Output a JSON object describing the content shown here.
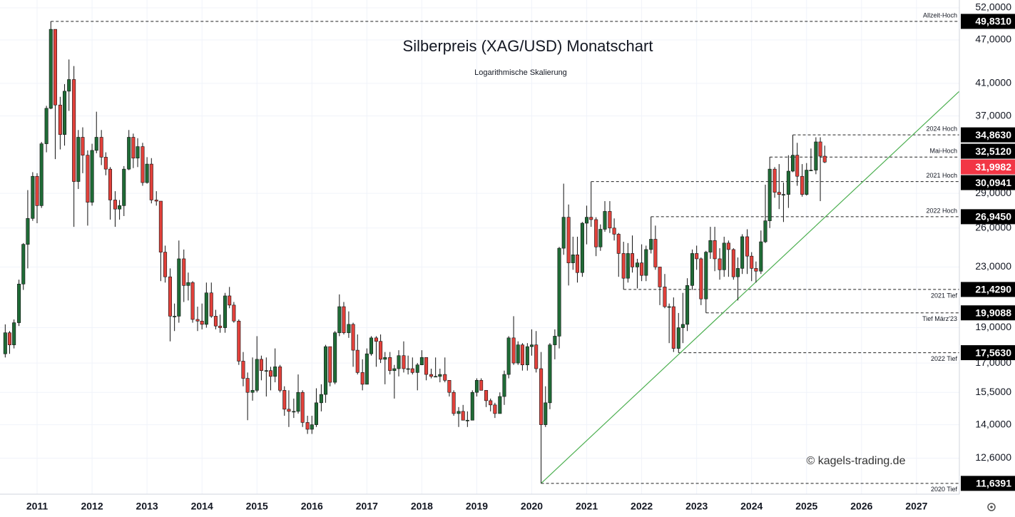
{
  "chart_data": {
    "type": "candlestick",
    "title": "Silberpreis (XAG/USD) Monatschart",
    "subtitle": "Logarithmische Skalierung",
    "watermark": "© kagels-trading.de",
    "log_scale": true,
    "grid": true,
    "up_color": "#1f6b36",
    "down_color": "#e2413b",
    "xlim": [
      2010.325,
      2027.78
    ],
    "ylim": [
      11.25,
      53.3
    ],
    "xticks": [
      2011,
      2012,
      2013,
      2014,
      2015,
      2016,
      2017,
      2018,
      2019,
      2020,
      2021,
      2022,
      2023,
      2024,
      2025,
      2026,
      2027
    ],
    "yticks": [
      {
        "value": 52,
        "label": "52,0000"
      },
      {
        "value": 47,
        "label": "47,0000"
      },
      {
        "value": 41,
        "label": "41,0000"
      },
      {
        "value": 37,
        "label": "37,0000"
      },
      {
        "value": 29,
        "label": "29,0000"
      },
      {
        "value": 26,
        "label": "26,0000"
      },
      {
        "value": 23,
        "label": "23,0000"
      },
      {
        "value": 19,
        "label": "19,0000"
      },
      {
        "value": 17,
        "label": "17,0000"
      },
      {
        "value": 15.5,
        "label": "15,5000"
      },
      {
        "value": 14,
        "label": "14,0000"
      },
      {
        "value": 12.6,
        "label": "12,6000"
      }
    ],
    "x": [
      2010.42,
      2010.5,
      2010.58,
      2010.67,
      2010.75,
      2010.83,
      2010.92,
      2011,
      2011.08,
      2011.17,
      2011.25,
      2011.33,
      2011.42,
      2011.5,
      2011.58,
      2011.67,
      2011.75,
      2011.83,
      2011.92,
      2012,
      2012.08,
      2012.17,
      2012.25,
      2012.33,
      2012.42,
      2012.5,
      2012.58,
      2012.67,
      2012.75,
      2012.83,
      2012.92,
      2013,
      2013.08,
      2013.17,
      2013.25,
      2013.33,
      2013.42,
      2013.5,
      2013.58,
      2013.67,
      2013.75,
      2013.83,
      2013.92,
      2014,
      2014.08,
      2014.17,
      2014.25,
      2014.33,
      2014.42,
      2014.5,
      2014.58,
      2014.67,
      2014.75,
      2014.83,
      2014.92,
      2015,
      2015.08,
      2015.17,
      2015.25,
      2015.33,
      2015.42,
      2015.5,
      2015.58,
      2015.67,
      2015.75,
      2015.83,
      2015.92,
      2016,
      2016.08,
      2016.17,
      2016.25,
      2016.33,
      2016.42,
      2016.5,
      2016.58,
      2016.67,
      2016.75,
      2016.83,
      2016.92,
      2017,
      2017.08,
      2017.17,
      2017.25,
      2017.33,
      2017.42,
      2017.5,
      2017.58,
      2017.67,
      2017.75,
      2017.83,
      2017.92,
      2018,
      2018.08,
      2018.17,
      2018.25,
      2018.33,
      2018.42,
      2018.5,
      2018.58,
      2018.67,
      2018.75,
      2018.83,
      2018.92,
      2019,
      2019.08,
      2019.17,
      2019.25,
      2019.33,
      2019.42,
      2019.5,
      2019.58,
      2019.67,
      2019.75,
      2019.83,
      2019.92,
      2020,
      2020.08,
      2020.17,
      2020.25,
      2020.33,
      2020.42,
      2020.5,
      2020.58,
      2020.67,
      2020.75,
      2020.83,
      2020.92,
      2021,
      2021.08,
      2021.17,
      2021.25,
      2021.33,
      2021.42,
      2021.5,
      2021.58,
      2021.67,
      2021.75,
      2021.83,
      2021.92,
      2022,
      2022.08,
      2022.17,
      2022.25,
      2022.33,
      2022.42,
      2022.5,
      2022.58,
      2022.67,
      2022.75,
      2022.83,
      2022.92,
      2023,
      2023.08,
      2023.17,
      2023.25,
      2023.33,
      2023.42,
      2023.5,
      2023.58,
      2023.67,
      2023.75,
      2023.83,
      2023.92,
      2024,
      2024.08,
      2024.17,
      2024.25,
      2024.33,
      2024.42,
      2024.5,
      2024.58,
      2024.67,
      2024.75,
      2024.83,
      2024.92,
      2025,
      2025.08,
      2025.17,
      2025.25,
      2025.33
    ],
    "open": [
      17.5,
      18.7,
      18.0,
      19.3,
      21.8,
      24.7,
      26.8,
      30.6,
      27.9,
      33.9,
      37.9,
      48.6,
      38.3,
      34.9,
      40.0,
      41.5,
      30.1,
      34.6,
      32.7,
      28.2,
      33.2,
      34.6,
      32.5,
      31.3,
      28.4,
      27.6,
      27.9,
      31.3,
      34.6,
      32.4,
      33.6,
      30.0,
      31.8,
      28.4,
      28.3,
      24.1,
      22.3,
      19.7,
      19.7,
      23.6,
      21.7,
      21.9,
      19.5,
      19.4,
      19.2,
      21.2,
      19.7,
      19.1,
      19.0,
      21.0,
      20.4,
      19.4,
      17.1,
      16.2,
      15.5,
      15.6,
      17.2,
      16.6,
      16.6,
      16.3,
      16.8,
      15.6,
      14.7,
      14.6,
      14.6,
      15.5,
      14.1,
      13.8,
      14.0,
      15.0,
      15.4,
      17.9,
      16.0,
      18.7,
      20.3,
      18.7,
      19.2,
      17.7,
      16.5,
      15.9,
      17.5,
      18.4,
      18.2,
      17.2,
      17.3,
      16.6,
      16.7,
      17.4,
      16.7,
      16.7,
      16.5,
      16.9,
      17.3,
      16.4,
      16.3,
      16.3,
      16.4,
      16.1,
      15.5,
      14.5,
      14.6,
      14.2,
      14.2,
      15.5,
      16.1,
      15.6,
      15.1,
      14.9,
      14.5,
      15.3,
      16.4,
      18.4,
      17.0,
      18.0,
      16.9,
      17.9,
      18.0,
      16.7,
      14.0,
      15.0,
      18.0,
      18.5,
      24.4,
      26.9,
      23.3,
      23.9,
      22.6,
      26.4,
      26.9,
      26.7,
      24.5,
      25.9,
      27.4,
      26.0,
      25.5,
      24.0,
      22.2,
      24.0,
      23.0,
      23.3,
      22.4,
      24.3,
      25.1,
      23.0,
      21.6,
      20.3,
      20.3,
      17.8,
      19.0,
      19.2,
      21.7,
      24.0,
      23.6,
      20.8,
      24.1,
      25.0,
      23.6,
      22.8,
      24.8,
      24.3,
      22.3,
      22.9,
      25.3,
      23.8,
      22.9,
      22.7,
      24.9,
      26.6,
      31.3,
      29.1,
      28.9,
      28.9,
      31.1,
      32.7,
      30.6,
      28.9,
      31.2,
      31.2,
      34.1,
      32.6
    ],
    "high": [
      19.2,
      18.8,
      19.5,
      22.1,
      24.8,
      29.3,
      31.0,
      30.9,
      34.1,
      38.2,
      49.83,
      48.6,
      39.3,
      40.9,
      44.2,
      43.3,
      35.4,
      35.7,
      33.2,
      33.9,
      37.5,
      35.4,
      33.0,
      31.5,
      29.2,
      28.4,
      31.6,
      35.4,
      35.0,
      34.5,
      34.0,
      32.5,
      32.4,
      29.2,
      28.3,
      24.6,
      22.9,
      20.5,
      25.0,
      24.3,
      22.6,
      22.0,
      20.3,
      20.5,
      21.9,
      21.9,
      20.1,
      19.8,
      21.2,
      21.6,
      20.6,
      19.5,
      17.6,
      16.5,
      17.3,
      18.5,
      17.4,
      17.3,
      16.8,
      17.8,
      16.9,
      15.8,
      15.6,
      15.2,
      16.4,
      15.6,
      14.4,
      14.4,
      15.7,
      15.9,
      18.0,
      17.9,
      18.8,
      21.1,
      20.6,
      20.0,
      19.3,
      18.6,
      17.2,
      17.8,
      18.5,
      18.5,
      18.6,
      17.6,
      17.6,
      16.9,
      17.7,
      18.2,
      17.4,
      17.3,
      17.0,
      17.7,
      17.3,
      16.7,
      17.3,
      16.7,
      17.3,
      16.1,
      15.6,
      14.8,
      14.9,
      14.6,
      15.6,
      16.2,
      16.2,
      15.6,
      15.2,
      15.0,
      15.5,
      16.6,
      18.5,
      19.7,
      18.2,
      18.1,
      18.1,
      18.9,
      18.8,
      17.6,
      15.8,
      18.1,
      18.9,
      24.5,
      29.9,
      28.0,
      25.3,
      25.3,
      26.5,
      27.9,
      30.09,
      26.9,
      26.3,
      28.3,
      28.3,
      26.8,
      25.6,
      24.9,
      24.8,
      25.4,
      23.6,
      24.7,
      24.6,
      26.95,
      26.2,
      23.0,
      22.5,
      20.5,
      20.9,
      19.9,
      21.2,
      22.2,
      24.3,
      24.6,
      23.7,
      24.2,
      26.1,
      26.1,
      24.4,
      25.3,
      25.0,
      24.4,
      23.7,
      25.5,
      25.9,
      24.1,
      23.4,
      25.8,
      29.8,
      32.51,
      31.5,
      31.8,
      30.0,
      32.7,
      34.86,
      34.0,
      31.8,
      31.9,
      33.4,
      34.6,
      34.6,
      33.7
    ],
    "low": [
      17.3,
      17.5,
      17.8,
      19.1,
      21.4,
      22.9,
      26.6,
      26.4,
      27.7,
      33.0,
      37.8,
      32.3,
      33.3,
      33.7,
      37.6,
      26.1,
      29.4,
      30.9,
      26.2,
      27.9,
      32.9,
      31.7,
      30.7,
      26.7,
      26.1,
      26.7,
      27.0,
      31.2,
      31.4,
      31.5,
      29.7,
      29.9,
      28.1,
      27.9,
      22.0,
      21.9,
      18.2,
      18.8,
      19.3,
      20.6,
      20.7,
      19.3,
      18.8,
      18.9,
      19.0,
      19.6,
      18.9,
      18.7,
      18.7,
      20.2,
      19.3,
      16.9,
      15.8,
      14.2,
      15.1,
      15.5,
      16.1,
      15.3,
      15.6,
      16.0,
      15.5,
      14.4,
      13.9,
      14.3,
      14.5,
      13.9,
      13.6,
      13.6,
      13.9,
      14.6,
      15.0,
      15.8,
      15.9,
      18.5,
      18.6,
      18.4,
      16.8,
      16.4,
      15.6,
      15.9,
      17.4,
      16.8,
      17.0,
      15.9,
      16.4,
      15.2,
      16.3,
      16.5,
      16.4,
      16.4,
      15.6,
      16.9,
      16.1,
      16.2,
      16.3,
      16.0,
      16.0,
      15.3,
      14.4,
      13.9,
      14.2,
      13.9,
      14.2,
      15.3,
      15.6,
      14.8,
      14.6,
      14.3,
      14.5,
      14.9,
      16.2,
      16.9,
      16.9,
      16.6,
      16.6,
      17.4,
      16.5,
      11.64,
      13.9,
      14.7,
      17.2,
      17.8,
      23.9,
      21.7,
      22.8,
      21.9,
      22.3,
      24.7,
      26.1,
      23.8,
      24.2,
      25.7,
      25.6,
      25.0,
      22.3,
      21.43,
      21.9,
      22.6,
      21.5,
      22.0,
      22.0,
      24.0,
      22.8,
      20.4,
      20.2,
      18.1,
      17.6,
      17.56,
      18.1,
      18.8,
      21.4,
      22.8,
      20.4,
      19.91,
      23.6,
      22.7,
      22.1,
      22.3,
      22.3,
      22.1,
      20.7,
      22.5,
      22.5,
      22.0,
      21.9,
      22.5,
      24.8,
      26.0,
      28.6,
      27.6,
      26.5,
      27.7,
      31.0,
      29.7,
      28.7,
      28.8,
      31.1,
      30.8,
      28.3,
      31.9
    ],
    "close": [
      18.7,
      18.0,
      19.3,
      21.8,
      24.7,
      26.8,
      30.6,
      27.9,
      33.9,
      37.9,
      48.6,
      38.3,
      34.9,
      40.0,
      41.5,
      30.1,
      34.6,
      32.7,
      28.2,
      33.2,
      34.6,
      32.5,
      31.3,
      28.4,
      27.6,
      27.9,
      31.3,
      34.6,
      32.4,
      33.6,
      30.0,
      31.8,
      28.4,
      28.3,
      24.1,
      22.3,
      19.7,
      19.7,
      23.6,
      21.7,
      21.9,
      19.5,
      19.4,
      19.2,
      21.2,
      19.7,
      19.1,
      19.0,
      21.0,
      20.4,
      19.4,
      17.1,
      16.2,
      15.5,
      15.6,
      17.2,
      16.6,
      16.6,
      16.3,
      16.8,
      15.6,
      14.7,
      14.6,
      14.6,
      15.5,
      14.1,
      13.8,
      14.0,
      15.0,
      15.4,
      17.9,
      16.0,
      18.7,
      20.3,
      18.7,
      19.2,
      17.7,
      16.5,
      15.9,
      17.5,
      18.4,
      18.2,
      17.2,
      17.3,
      16.6,
      16.7,
      17.4,
      16.7,
      16.7,
      16.5,
      16.9,
      17.3,
      16.4,
      16.3,
      16.3,
      16.4,
      16.1,
      15.5,
      14.5,
      14.6,
      14.2,
      14.2,
      15.5,
      16.1,
      15.6,
      15.1,
      14.9,
      14.5,
      15.3,
      16.4,
      18.4,
      17.0,
      18.0,
      16.9,
      17.9,
      18.0,
      16.7,
      14.0,
      15.0,
      18.0,
      18.5,
      24.4,
      26.9,
      23.3,
      23.9,
      22.6,
      26.4,
      26.9,
      26.7,
      24.5,
      25.9,
      27.4,
      26.0,
      25.5,
      24.0,
      22.2,
      24.0,
      23.0,
      23.3,
      22.4,
      24.3,
      25.1,
      23.0,
      21.6,
      20.3,
      20.3,
      17.8,
      19.0,
      19.2,
      21.7,
      24.0,
      23.6,
      20.8,
      24.1,
      25.0,
      23.6,
      22.8,
      24.8,
      24.3,
      22.3,
      22.9,
      25.3,
      23.8,
      22.9,
      22.7,
      24.9,
      26.6,
      31.3,
      29.1,
      28.9,
      28.9,
      31.1,
      32.7,
      30.6,
      28.9,
      31.2,
      31.2,
      34.1,
      32.6,
      32.0
    ],
    "levels": [
      {
        "name": "Allzeit-Hoch",
        "value": 49.831,
        "label": "49,8310",
        "x": 2011.25,
        "side": "above"
      },
      {
        "name": "2024 Hoch",
        "value": 34.863,
        "label": "34,8630",
        "x": 2024.75,
        "side": "above"
      },
      {
        "name": "Mai-Hoch",
        "value": 32.512,
        "label": "32,5120",
        "x": 2024.33,
        "side": "above"
      },
      {
        "name": "2021 Hoch",
        "value": 30.0941,
        "label": "30,0941",
        "x": 2021.08,
        "side": "above"
      },
      {
        "name": "2022 Hoch",
        "value": 26.945,
        "label": "26,9450",
        "x": 2022.17,
        "side": "above"
      },
      {
        "name": "2021 Tief",
        "value": 21.429,
        "label": "21,4290",
        "x": 2021.67,
        "side": "below"
      },
      {
        "name": "Tief März'23",
        "value": 19.9088,
        "label": "19,9088",
        "x": 2023.17,
        "side": "below"
      },
      {
        "name": "2022 Tief",
        "value": 17.563,
        "label": "17,5630",
        "x": 2022.67,
        "side": "below"
      },
      {
        "name": "2020 Tief",
        "value": 11.6391,
        "label": "11,6391",
        "x": 2020.17,
        "side": "below"
      }
    ],
    "last_price": {
      "value": 31.9982,
      "label": "31,9982",
      "color": "#f23645"
    },
    "trendline": {
      "x": [
        2020.17,
        2027.78
      ],
      "values": [
        11.64,
        40.0
      ],
      "color": "#4caf50"
    }
  }
}
